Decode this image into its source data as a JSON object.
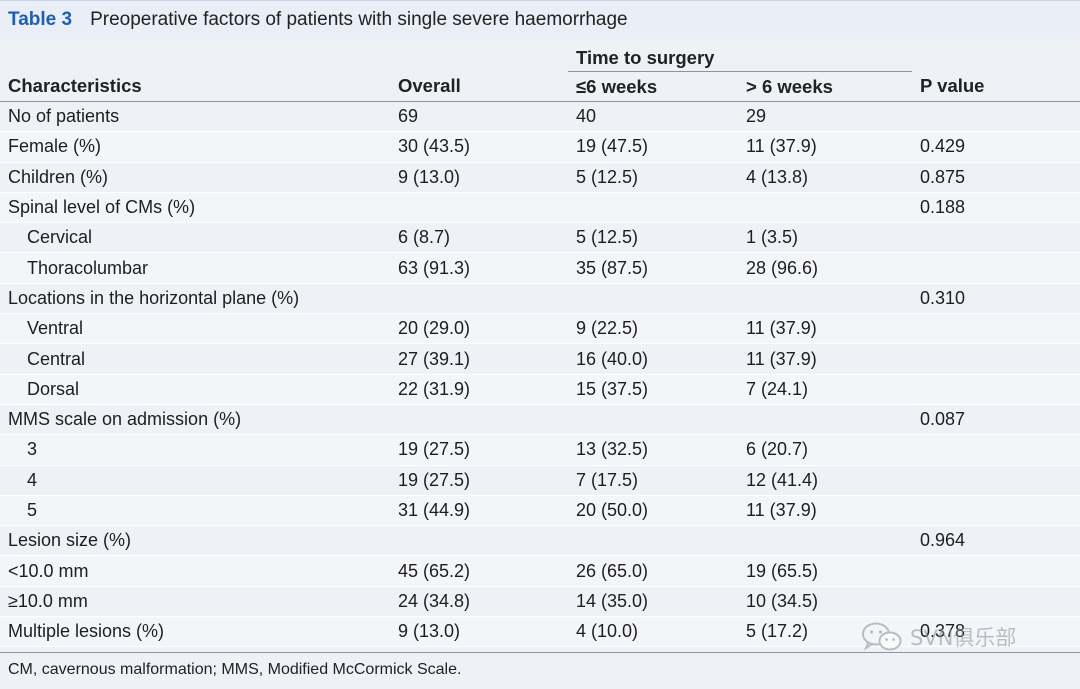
{
  "caption": {
    "label": "Table 3",
    "title": "Preoperative factors of patients with single severe haemorrhage"
  },
  "header": {
    "group_label": "Time to surgery",
    "col_characteristics": "Characteristics",
    "col_overall": "Overall",
    "col_le6": "≤6 weeks",
    "col_gt6": "> 6 weeks",
    "col_p": "P value"
  },
  "rows": [
    {
      "label": "No of patients",
      "overall": "69",
      "le6": "40",
      "gt6": "29",
      "p": ""
    },
    {
      "label": "Female (%)",
      "overall": "30 (43.5)",
      "le6": "19 (47.5)",
      "gt6": "11 (37.9)",
      "p": "0.429"
    },
    {
      "label": "Children (%)",
      "overall": "9 (13.0)",
      "le6": "5 (12.5)",
      "gt6": "4 (13.8)",
      "p": "0.875"
    },
    {
      "label": "Spinal level of CMs (%)",
      "overall": "",
      "le6": "",
      "gt6": "",
      "p": "0.188"
    },
    {
      "label": "Cervical",
      "overall": "6 (8.7)",
      "le6": "5 (12.5)",
      "gt6": "1 (3.5)",
      "p": ""
    },
    {
      "label": "Thoracolumbar",
      "overall": "63 (91.3)",
      "le6": "35 (87.5)",
      "gt6": "28 (96.6)",
      "p": ""
    },
    {
      "label": "Locations in the horizontal plane (%)",
      "overall": "",
      "le6": "",
      "gt6": "",
      "p": "0.310"
    },
    {
      "label": "Ventral",
      "overall": "20 (29.0)",
      "le6": "9 (22.5)",
      "gt6": "11 (37.9)",
      "p": ""
    },
    {
      "label": "Central",
      "overall": "27 (39.1)",
      "le6": "16 (40.0)",
      "gt6": "11 (37.9)",
      "p": ""
    },
    {
      "label": "Dorsal",
      "overall": "22 (31.9)",
      "le6": "15 (37.5)",
      "gt6": "7 (24.1)",
      "p": ""
    },
    {
      "label": "MMS scale on admission (%)",
      "overall": "",
      "le6": "",
      "gt6": "",
      "p": "0.087"
    },
    {
      "label": "3",
      "overall": "19 (27.5)",
      "le6": "13 (32.5)",
      "gt6": "6 (20.7)",
      "p": ""
    },
    {
      "label": "4",
      "overall": "19 (27.5)",
      "le6": "7 (17.5)",
      "gt6": "12 (41.4)",
      "p": ""
    },
    {
      "label": "5",
      "overall": "31 (44.9)",
      "le6": "20 (50.0)",
      "gt6": "11 (37.9)",
      "p": ""
    },
    {
      "label": "Lesion size (%)",
      "overall": "",
      "le6": "",
      "gt6": "",
      "p": "0.964"
    },
    {
      "label": "<10.0 mm",
      "overall": "45 (65.2)",
      "le6": "26 (65.0)",
      "gt6": "19 (65.5)",
      "p": ""
    },
    {
      "label": "≥10.0 mm",
      "overall": "24 (34.8)",
      "le6": "14 (35.0)",
      "gt6": "10 (34.5)",
      "p": ""
    },
    {
      "label": "Multiple lesions (%)",
      "overall": "9 (13.0)",
      "le6": "4 (10.0)",
      "gt6": "5 (17.2)",
      "p": "0.378"
    }
  ],
  "footnote": "CM, cavernous malformation; MMS, Modified McCormick Scale.",
  "watermark": {
    "text": "SVN俱乐部",
    "icon": "wechat-logo-icon"
  },
  "colors": {
    "caption_label": "#1f5fb0",
    "caption_bg": "#e9eef7",
    "row_bg": "#eef1f6",
    "rule": "#8d949c"
  }
}
